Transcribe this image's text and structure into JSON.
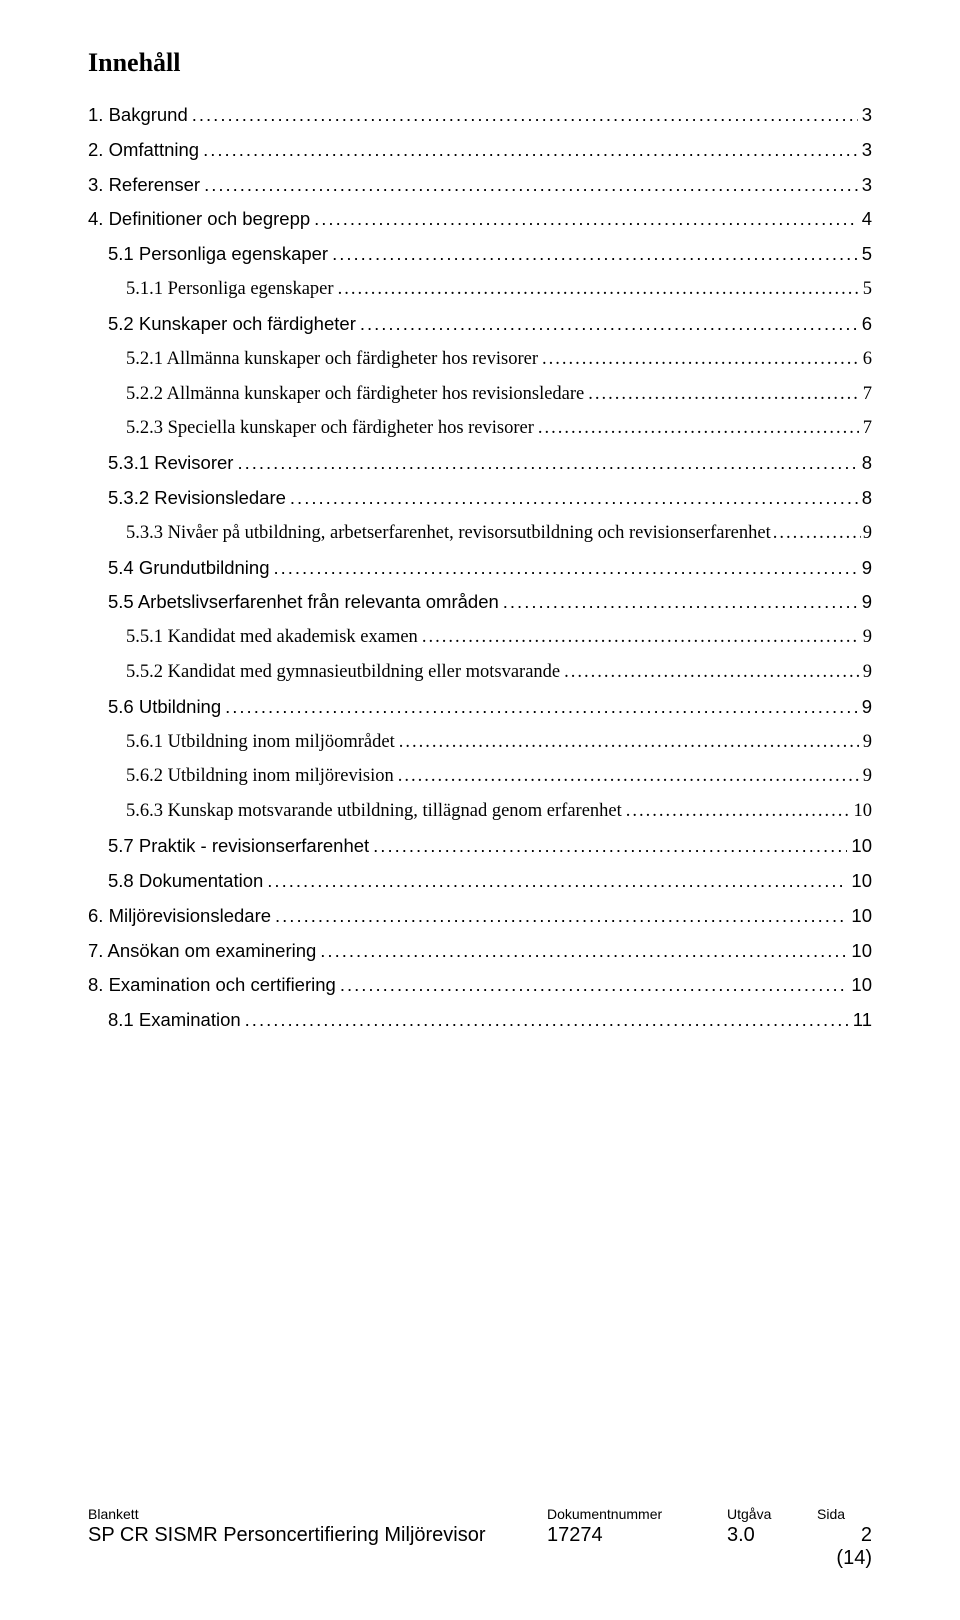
{
  "heading": "Innehåll",
  "toc": [
    {
      "level": 0,
      "label": "1. Bakgrund",
      "page": "3"
    },
    {
      "level": 0,
      "label": "2. Omfattning",
      "page": "3"
    },
    {
      "level": 0,
      "label": "3. Referenser",
      "page": "3"
    },
    {
      "level": 0,
      "label": "4. Definitioner och begrepp",
      "page": "4"
    },
    {
      "level": 1,
      "label": "5.1 Personliga egenskaper",
      "page": "5"
    },
    {
      "level": 2,
      "label": "5.1.1 Personliga egenskaper",
      "page": "5"
    },
    {
      "level": 1,
      "label": "5.2 Kunskaper och färdigheter",
      "page": "6"
    },
    {
      "level": 2,
      "label": "5.2.1 Allmänna kunskaper och färdigheter hos revisorer",
      "page": "6"
    },
    {
      "level": 2,
      "label": "5.2.2 Allmänna kunskaper och färdigheter hos revisionsledare",
      "page": "7"
    },
    {
      "level": 2,
      "label": "5.2.3 Speciella kunskaper och färdigheter hos revisorer",
      "page": "7"
    },
    {
      "level": 1,
      "label": "5.3.1 Revisorer",
      "page": "8"
    },
    {
      "level": 1,
      "label": "5.3.2 Revisionsledare",
      "page": "8"
    },
    {
      "level": 2,
      "label": "5.3.3 Nivåer på utbildning, arbetserfarenhet, revisorsutbildning och revisionserfarenhet",
      "page": "9",
      "tight": true
    },
    {
      "level": 1,
      "label": "5.4 Grundutbildning",
      "page": "9"
    },
    {
      "level": 1,
      "label": "5.5 Arbetslivserfarenhet från relevanta områden",
      "page": "9"
    },
    {
      "level": 2,
      "label": "5.5.1 Kandidat med akademisk examen",
      "page": "9"
    },
    {
      "level": 2,
      "label": "5.5.2 Kandidat med gymnasieutbildning eller motsvarande",
      "page": "9"
    },
    {
      "level": 1,
      "label": "5.6 Utbildning",
      "page": "9"
    },
    {
      "level": 2,
      "label": "5.6.1 Utbildning inom miljöområdet",
      "page": "9"
    },
    {
      "level": 2,
      "label": "5.6.2 Utbildning inom miljörevision",
      "page": "9"
    },
    {
      "level": 2,
      "label": "5.6.3 Kunskap motsvarande utbildning, tillägnad genom erfarenhet",
      "page": "10"
    },
    {
      "level": 1,
      "label": "5.7 Praktik - revisionserfarenhet",
      "page": "10"
    },
    {
      "level": 1,
      "label": "5.8 Dokumentation",
      "page": "10"
    },
    {
      "level": 0,
      "label": "6. Miljörevisionsledare",
      "page": "10"
    },
    {
      "level": 0,
      "label": "7. Ansökan om examinering",
      "page": "10"
    },
    {
      "level": 0,
      "label": "8. Examination och certifiering",
      "page": "10"
    },
    {
      "level": 1,
      "label": "8.1 Examination",
      "page": "11"
    }
  ],
  "footer": {
    "labels": {
      "c1": "Blankett",
      "c2": "Dokumentnummer",
      "c3": "Utgåva",
      "c4": "Sida"
    },
    "values": {
      "c1": "SP CR SISMR Personcertifiering Miljörevisor",
      "c2": "17274",
      "c3": "3.0",
      "c4a": "2",
      "c4b": "(14)"
    }
  }
}
